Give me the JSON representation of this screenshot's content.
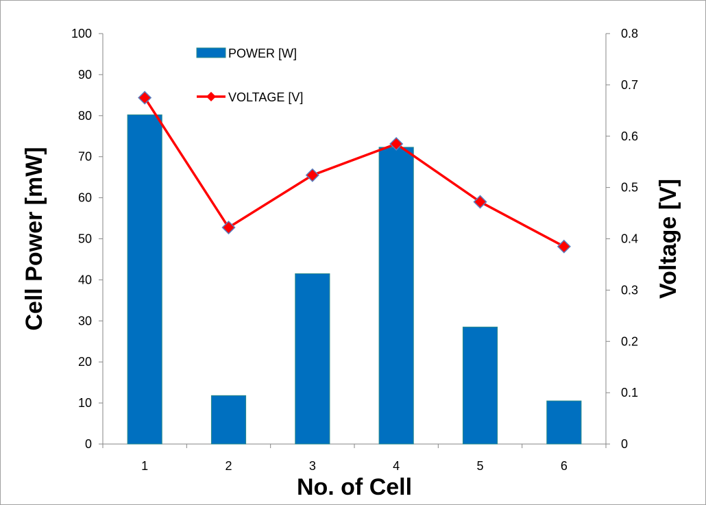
{
  "chart_data": {
    "type": "bar+line",
    "categories": [
      "1",
      "2",
      "3",
      "4",
      "5",
      "6"
    ],
    "xlabel": "No. of Cell",
    "ylabel": "Cell Power [mW]",
    "y2label": "Voltage [V]",
    "ylim": [
      0,
      100
    ],
    "y2lim": [
      0,
      0.8
    ],
    "yticks": [
      "0",
      "10",
      "20",
      "30",
      "40",
      "50",
      "60",
      "70",
      "80",
      "90",
      "100"
    ],
    "y2ticks": [
      "0",
      "0.1",
      "0.2",
      "0.3",
      "0.4",
      "0.5",
      "0.6",
      "0.7",
      "0.8"
    ],
    "grid": false,
    "legend_position": "top-left",
    "series": [
      {
        "name": "POWER [W]",
        "kind": "bar",
        "axis": "left",
        "color": "#0070C0",
        "values": [
          80.2,
          11.8,
          41.5,
          72.3,
          28.5,
          10.5
        ]
      },
      {
        "name": "VOLTAGE [V]",
        "kind": "line",
        "axis": "right",
        "color": "#FF0000",
        "marker": "diamond",
        "values": [
          0.675,
          0.422,
          0.524,
          0.585,
          0.472,
          0.385
        ]
      }
    ]
  }
}
